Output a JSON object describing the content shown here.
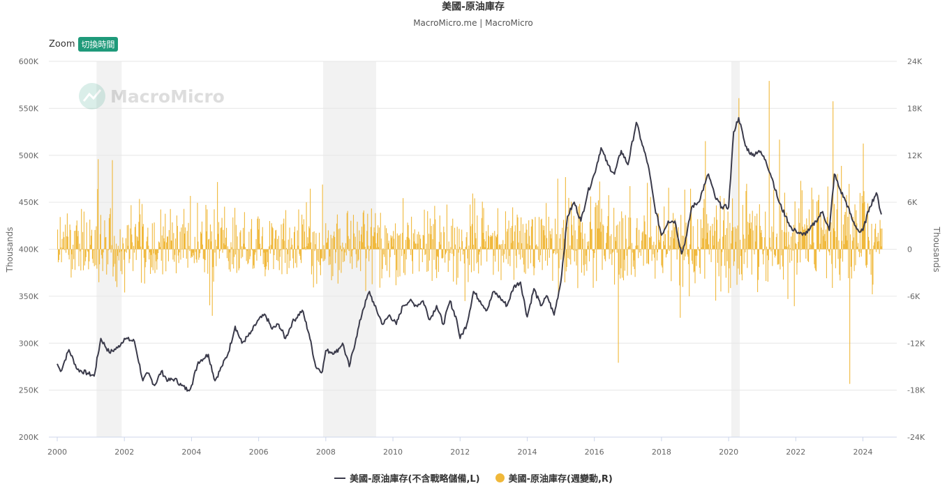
{
  "chart_data": {
    "type": "line+bar",
    "title": "美國-原油庫存",
    "subtitle": "MacroMicro.me | MacroMicro",
    "watermark": "MacroMicro",
    "zoom_label": "Zoom",
    "zoom_button": "切換時間",
    "ylabel_left": "Thousands",
    "ylabel_right": "Thousands",
    "ylim_left": [
      200000,
      600000
    ],
    "ylim_right": [
      -24000,
      24000
    ],
    "xlim": [
      2000.0,
      2024.8
    ],
    "y_ticks_left": [
      "200K",
      "250K",
      "300K",
      "350K",
      "400K",
      "450K",
      "500K",
      "550K",
      "600K"
    ],
    "y_ticks_right": [
      "-24K",
      "-18K",
      "-12K",
      "-6K",
      "0",
      "6K",
      "12K",
      "18K",
      "24K"
    ],
    "x_ticks": [
      "2000",
      "2002",
      "2004",
      "2006",
      "2008",
      "2010",
      "2012",
      "2014",
      "2016",
      "2018",
      "2020",
      "2022",
      "2024"
    ],
    "recessions": [
      [
        2001.17,
        2001.92
      ],
      [
        2007.92,
        2009.5
      ],
      [
        2020.08,
        2020.33
      ]
    ],
    "series": [
      {
        "name": "美國-原油庫存(不含戰略儲備,L)",
        "axis": "left",
        "color": "#3a3a4a",
        "x": [
          2000.0,
          2000.1,
          2000.35,
          2000.6,
          2000.9,
          2001.1,
          2001.3,
          2001.55,
          2001.8,
          2002.0,
          2002.3,
          2002.55,
          2002.7,
          2002.9,
          2003.1,
          2003.3,
          2003.5,
          2003.7,
          2003.9,
          2004.0,
          2004.2,
          2004.5,
          2004.7,
          2004.9,
          2005.1,
          2005.3,
          2005.5,
          2005.75,
          2006.0,
          2006.2,
          2006.4,
          2006.6,
          2006.8,
          2007.0,
          2007.3,
          2007.5,
          2007.7,
          2007.9,
          2008.0,
          2008.3,
          2008.5,
          2008.7,
          2008.9,
          2009.1,
          2009.3,
          2009.45,
          2009.7,
          2009.9,
          2010.1,
          2010.3,
          2010.5,
          2010.7,
          2010.9,
          2011.1,
          2011.3,
          2011.5,
          2011.7,
          2011.9,
          2012.0,
          2012.2,
          2012.4,
          2012.6,
          2012.8,
          2013.0,
          2013.2,
          2013.4,
          2013.6,
          2013.8,
          2014.0,
          2014.2,
          2014.4,
          2014.6,
          2014.8,
          2015.0,
          2015.2,
          2015.4,
          2015.6,
          2015.8,
          2016.0,
          2016.2,
          2016.4,
          2016.6,
          2016.8,
          2017.0,
          2017.25,
          2017.4,
          2017.6,
          2017.8,
          2018.0,
          2018.2,
          2018.4,
          2018.6,
          2018.75,
          2018.9,
          2019.1,
          2019.3,
          2019.4,
          2019.6,
          2019.8,
          2020.0,
          2020.15,
          2020.3,
          2020.5,
          2020.7,
          2020.9,
          2021.1,
          2021.3,
          2021.5,
          2021.7,
          2021.9,
          2022.0,
          2022.2,
          2022.4,
          2022.6,
          2022.8,
          2023.0,
          2023.15,
          2023.3,
          2023.5,
          2023.7,
          2023.9,
          2024.0,
          2024.2,
          2024.4,
          2024.55
        ],
        "values": [
          278000,
          270000,
          293000,
          272000,
          268000,
          265000,
          305000,
          290000,
          295000,
          305000,
          302000,
          260000,
          268000,
          255000,
          270000,
          260000,
          262000,
          255000,
          250000,
          255000,
          280000,
          288000,
          260000,
          275000,
          290000,
          318000,
          300000,
          310000,
          325000,
          330000,
          315000,
          320000,
          305000,
          322000,
          335000,
          310000,
          275000,
          270000,
          292000,
          290000,
          300000,
          275000,
          305000,
          335000,
          355000,
          340000,
          320000,
          330000,
          320000,
          340000,
          345000,
          340000,
          345000,
          325000,
          340000,
          320000,
          345000,
          325000,
          305000,
          320000,
          355000,
          345000,
          335000,
          355000,
          348000,
          340000,
          360000,
          365000,
          328000,
          358000,
          340000,
          350000,
          330000,
          365000,
          435000,
          450000,
          430000,
          460000,
          480000,
          508000,
          490000,
          480000,
          505000,
          490000,
          535000,
          515000,
          490000,
          445000,
          415000,
          430000,
          430000,
          395000,
          415000,
          445000,
          450000,
          470000,
          480000,
          455000,
          445000,
          445000,
          525000,
          540000,
          510000,
          500000,
          505000,
          495000,
          475000,
          450000,
          435000,
          420000,
          420000,
          415000,
          420000,
          430000,
          440000,
          420000,
          480000,
          465000,
          450000,
          430000,
          418000,
          420000,
          445000,
          460000,
          437000
        ]
      },
      {
        "name": "美國-原油庫存(週變動,R)",
        "axis": "right",
        "color": "#f0b83a",
        "type": "bar",
        "x_start": 2000.0,
        "x_step": 0.0192,
        "count": 1280,
        "seed": 11,
        "extremes": [
          {
            "x": 2001.2,
            "value": 11500
          },
          {
            "x": 2004.6,
            "value": -8500
          },
          {
            "x": 2016.7,
            "value": -14500
          },
          {
            "x": 2020.3,
            "value": 19300
          },
          {
            "x": 2021.2,
            "value": 21500
          },
          {
            "x": 2021.5,
            "value": 14000
          },
          {
            "x": 2023.1,
            "value": 18900
          },
          {
            "x": 2023.6,
            "value": -17200
          },
          {
            "x": 2024.0,
            "value": 13500
          }
        ]
      }
    ]
  }
}
